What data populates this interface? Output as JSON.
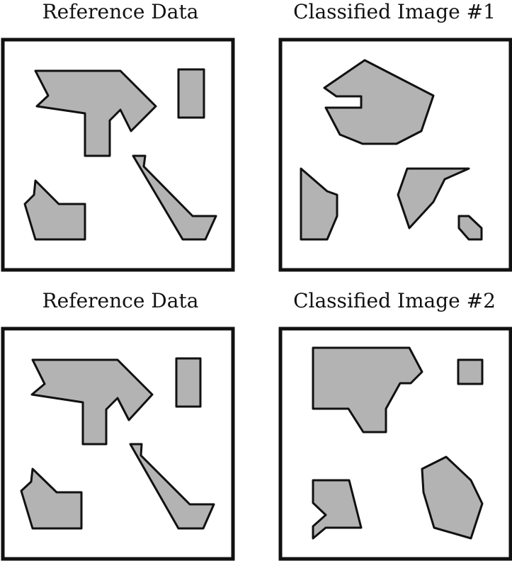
{
  "panels": [
    {
      "id": "reference-1",
      "title": "Reference Data"
    },
    {
      "id": "classified-1",
      "title": "Classified Image #1"
    },
    {
      "id": "reference-2",
      "title": "Reference Data"
    },
    {
      "id": "classified-2",
      "title": "Classified Image #2"
    }
  ],
  "colors": {
    "shape_fill": "#b3b3b3",
    "outline": "#111111",
    "background": "#ffffff"
  }
}
